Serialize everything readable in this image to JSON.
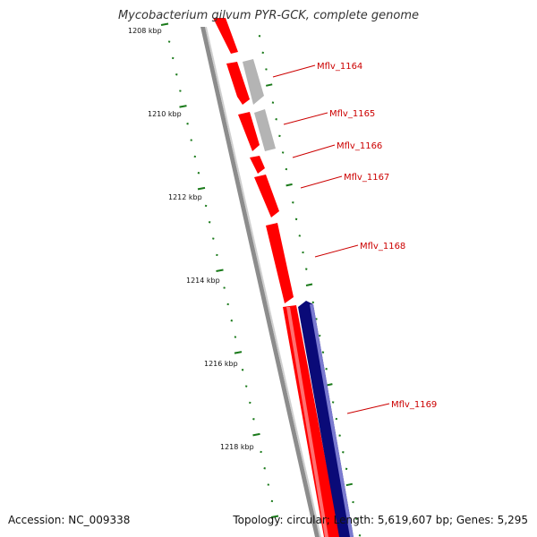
{
  "title": "Mycobacterium gilvum PYR-GCK, complete genome",
  "accession": "Accession: NC_009338",
  "summary": "Topology: circular; Length: 5,619,607 bp; Genes: 5,295",
  "ticks": [
    {
      "label": "1208 kbp"
    },
    {
      "label": "1210 kbp"
    },
    {
      "label": "1212 kbp"
    },
    {
      "label": "1214 kbp"
    },
    {
      "label": "1216 kbp"
    },
    {
      "label": "1218 kbp"
    }
  ],
  "genes": [
    {
      "label": "Mflv_1164"
    },
    {
      "label": "Mflv_1165"
    },
    {
      "label": "Mflv_1166"
    },
    {
      "label": "Mflv_1167"
    },
    {
      "label": "Mflv_1168"
    },
    {
      "label": "Mflv_1169"
    }
  ],
  "colors": {
    "gene_red": "#ff0000",
    "gene_grey": "#b4b4b4",
    "gene_navy": "#0a0a78",
    "tick_green": "#1a7a1a",
    "axis_grey": "#888888",
    "label_red": "#cc0000"
  }
}
